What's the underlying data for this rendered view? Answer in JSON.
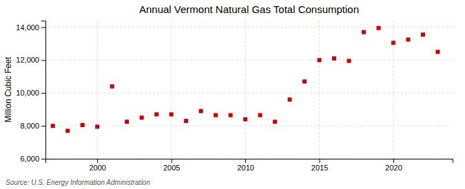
{
  "chart_data": {
    "type": "scatter",
    "title": "Annual Vermont Natural Gas Total Consumption",
    "ylabel": "Million Cubic Feet",
    "annotations": [
      "Source: U.S. Energy Information Administration"
    ],
    "x": [
      1997,
      1998,
      1999,
      2000,
      2001,
      2002,
      2003,
      2004,
      2005,
      2006,
      2007,
      2008,
      2009,
      2010,
      2011,
      2012,
      2013,
      2014,
      2015,
      2016,
      2017,
      2018,
      2019,
      2020,
      2021,
      2022,
      2023
    ],
    "values": [
      8000,
      7700,
      8050,
      7950,
      10400,
      8250,
      8500,
      8700,
      8700,
      8300,
      8900,
      8650,
      8650,
      8400,
      8650,
      8250,
      9600,
      10700,
      12000,
      12100,
      11950,
      13700,
      13950,
      13050,
      13250,
      13550,
      12500
    ],
    "color": "#cc0000",
    "marker": "square",
    "xlim": [
      1996.5,
      2024
    ],
    "xticks": [
      2000,
      2005,
      2010,
      2015,
      2020
    ],
    "ylim": [
      6000,
      14400
    ],
    "yticks": [
      {
        "value": 6000,
        "label": "6,000"
      },
      {
        "value": 8000,
        "label": "8,000"
      },
      {
        "value": 10000,
        "label": "10,000"
      },
      {
        "value": 12000,
        "label": "12,000"
      },
      {
        "value": 14000,
        "label": "14,000"
      }
    ],
    "grid": true
  }
}
